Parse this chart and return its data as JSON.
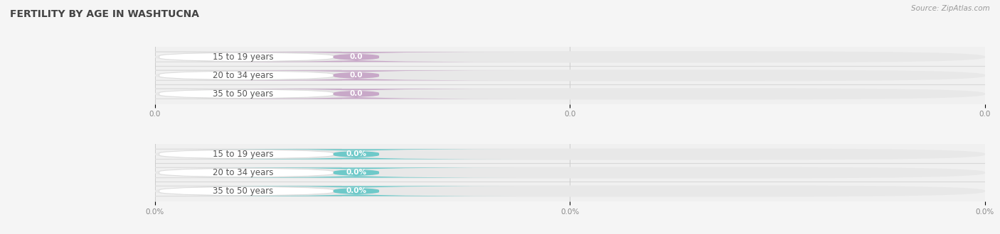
{
  "title": "FERTILITY BY AGE IN WASHTUCNA",
  "source_text": "Source: ZipAtlas.com",
  "top_section": {
    "categories": [
      "15 to 19 years",
      "20 to 34 years",
      "35 to 50 years"
    ],
    "values": [
      0.0,
      0.0,
      0.0
    ],
    "bar_color": "#c8a8c8",
    "track_color": "#e8e8e8",
    "x_tick_labels": [
      "0.0",
      "0.0",
      "0.0"
    ]
  },
  "bottom_section": {
    "categories": [
      "15 to 19 years",
      "20 to 34 years",
      "35 to 50 years"
    ],
    "values": [
      0.0,
      0.0,
      0.0
    ],
    "bar_color": "#6ec9c9",
    "track_color": "#e8e8e8",
    "x_tick_labels": [
      "0.0%",
      "0.0%",
      "0.0%"
    ]
  },
  "bg_color": "#f5f5f5",
  "plot_bg_color": "#f0f0f0",
  "title_color": "#444444",
  "title_fontsize": 10,
  "source_fontsize": 7.5,
  "category_fontsize": 8.5,
  "value_fontsize": 7.5,
  "tick_fontsize": 7.5,
  "tick_color": "#888888",
  "separator_color": "#d8d8d8",
  "grid_color": "#cccccc",
  "label_pill_color": "#ffffff",
  "label_pill_edge_color": "#dddddd",
  "label_text_color": "#555555"
}
